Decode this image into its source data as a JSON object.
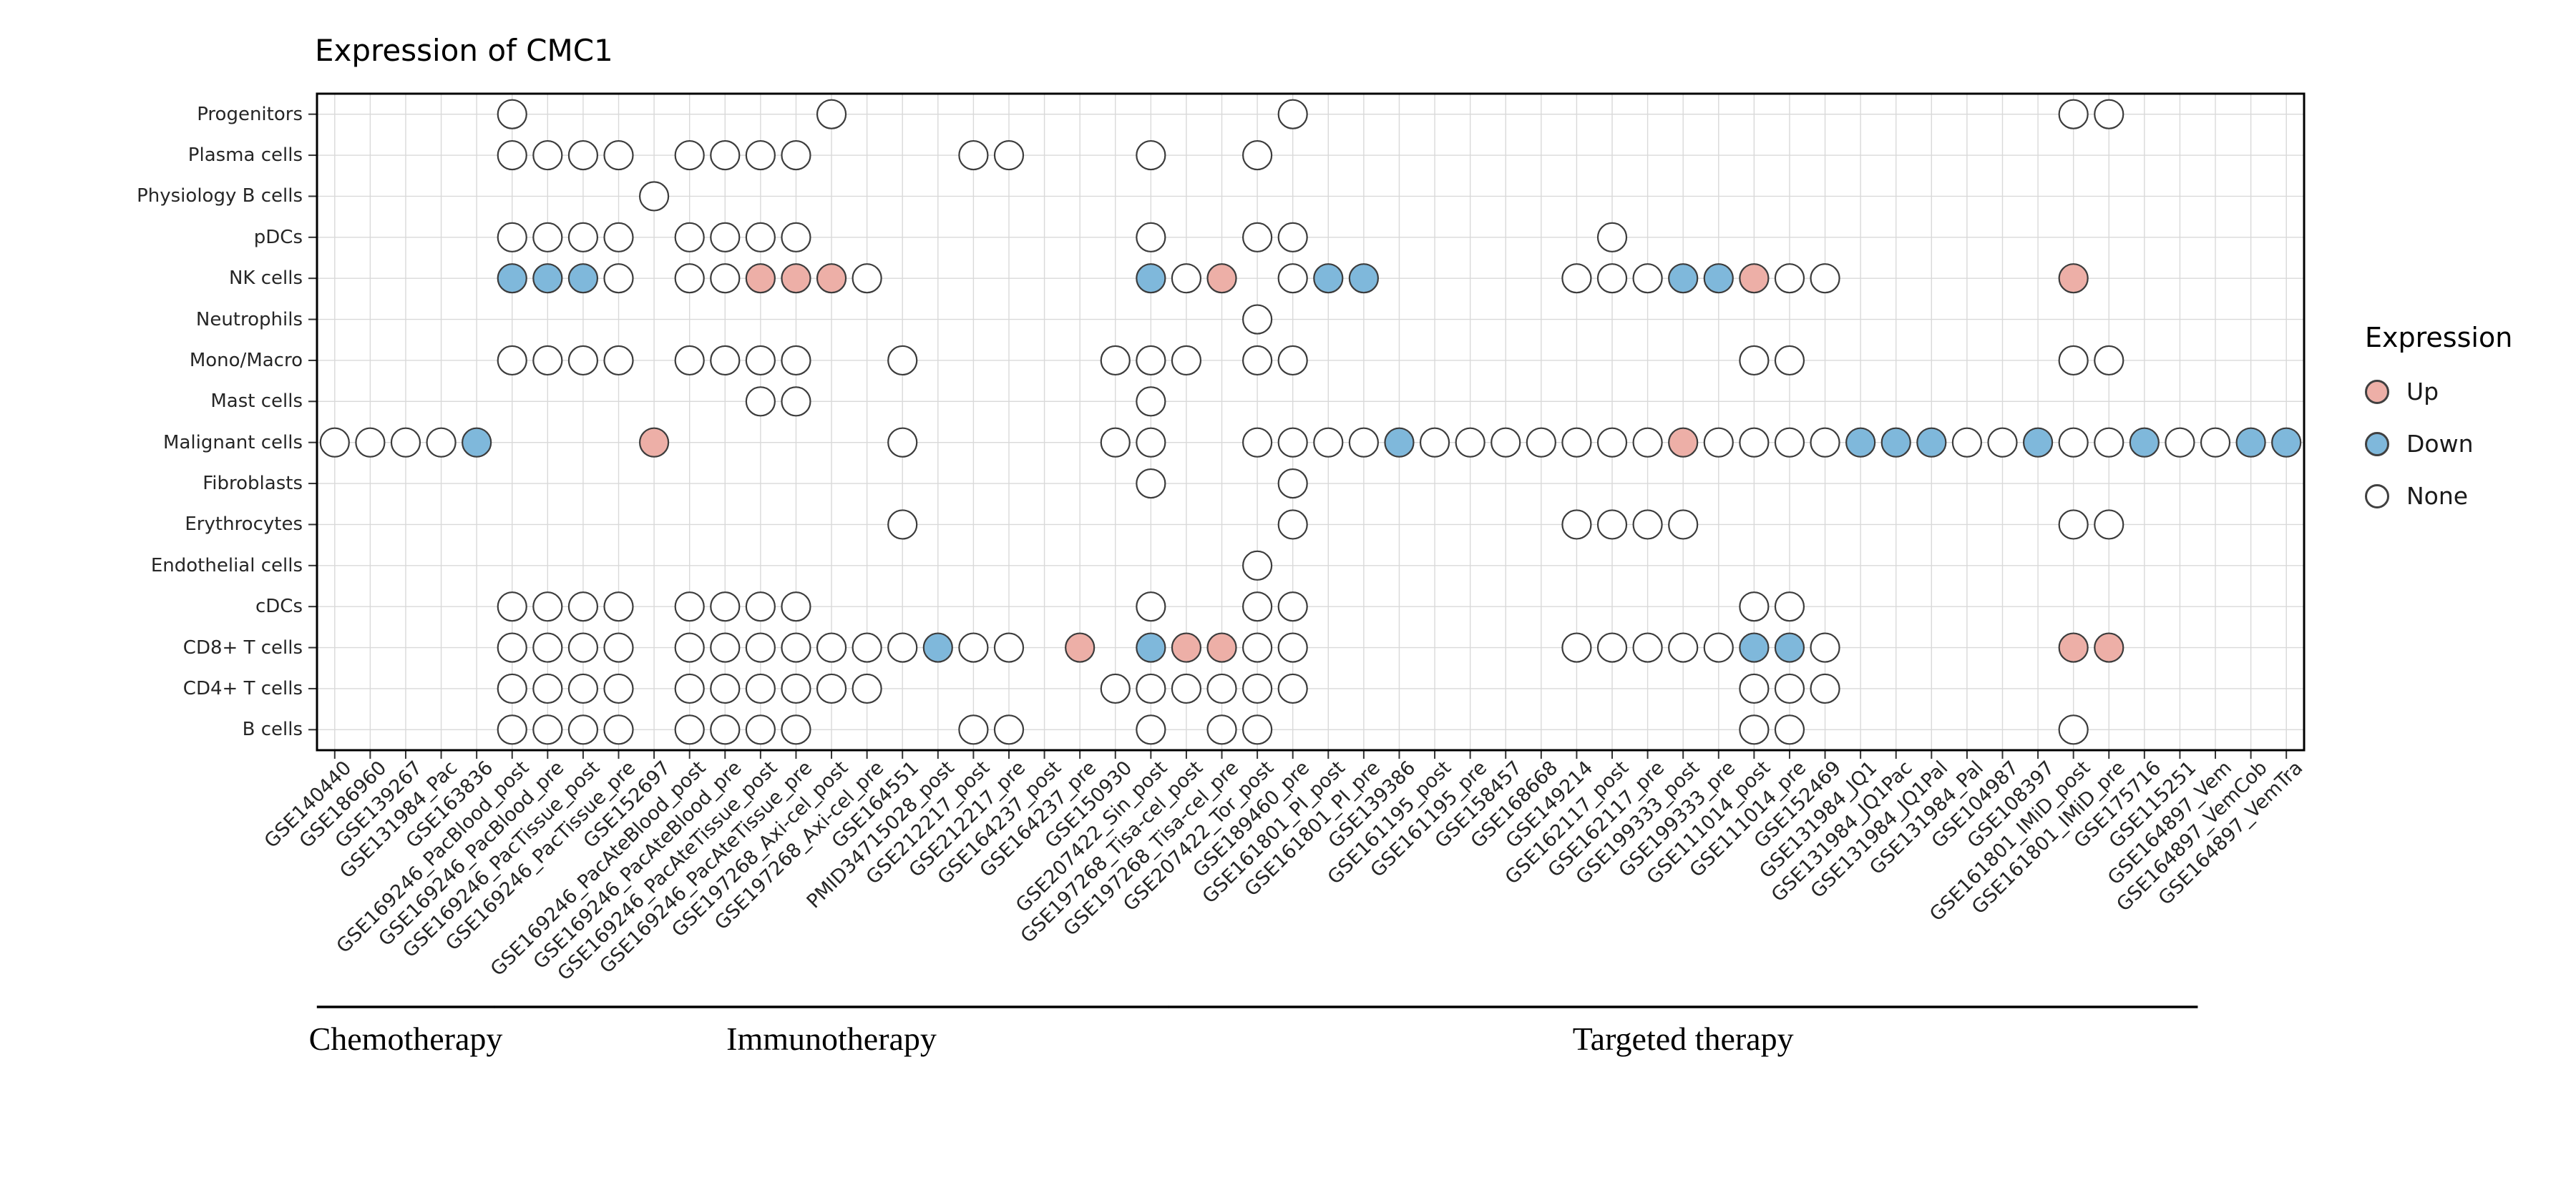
{
  "title": "Expression of CMC1",
  "legend": {
    "title": "Expression",
    "items": [
      {
        "label": "Up",
        "code": "U",
        "color": "#EDAFA7"
      },
      {
        "label": "Down",
        "code": "D",
        "color": "#7FB8DB"
      },
      {
        "label": "None",
        "code": "N",
        "color": "#FFFFFF"
      }
    ]
  },
  "chart_data": {
    "type": "heatmap",
    "variant": "dot-matrix",
    "title": "Expression of CMC1",
    "grid": true,
    "legend_position": "right",
    "rows": [
      "Progenitors",
      "Plasma cells",
      "Physiology B cells",
      "pDCs",
      "NK cells",
      "Neutrophils",
      "Mono/Macro",
      "Mast cells",
      "Malignant cells",
      "Fibroblasts",
      "Erythrocytes",
      "Endothelial cells",
      "cDCs",
      "CD8+ T cells",
      "CD4+ T cells",
      "B cells"
    ],
    "columns": [
      "GSE140440",
      "GSE186960",
      "GSE139267",
      "GSE131984_Pac",
      "GSE163836",
      "GSE169246_PacBlood_post",
      "GSE169246_PacBlood_pre",
      "GSE169246_PacTissue_post",
      "GSE169246_PacTissue_pre",
      "GSE152697",
      "GSE169246_PacAteBlood_post",
      "GSE169246_PacAteBlood_pre",
      "GSE169246_PacAteTissue_post",
      "GSE169246_PacAteTissue_pre",
      "GSE197268_Axi-cel_post",
      "GSE197268_Axi-cel_pre",
      "GSE164551",
      "PMID34715028_post",
      "GSE212217_post",
      "GSE212217_pre",
      "GSE164237_post",
      "GSE164237_pre",
      "GSE150930",
      "GSE207422_Sin_post",
      "GSE197268_Tisa-cel_post",
      "GSE197268_Tisa-cel_pre",
      "GSE207422_Tor_post",
      "GSE189460_pre",
      "GSE161801_PI_post",
      "GSE161801_PI_pre",
      "GSE139386",
      "GSE161195_post",
      "GSE161195_pre",
      "GSE158457",
      "GSE168668",
      "GSE149214",
      "GSE162117_post",
      "GSE162117_pre",
      "GSE199333_post",
      "GSE199333_pre",
      "GSE111014_post",
      "GSE111014_pre",
      "GSE152469",
      "GSE131984_JQ1",
      "GSE131984_JQ1Pac",
      "GSE131984_JQ1Pal",
      "GSE131984_Pal",
      "GSE104987",
      "GSE108397",
      "GSE161801_IMiD_post",
      "GSE161801_IMiD_pre",
      "GSE175716",
      "GSE115251",
      "GSE164897_Vem",
      "GSE164897_VemCob",
      "GSE164897_VemTra"
    ],
    "groups": [
      {
        "label": "Chemotherapy",
        "from": 0,
        "to": 4
      },
      {
        "label": "Immunotherapy",
        "from": 5,
        "to": 23
      },
      {
        "label": "Targeted therapy",
        "from": 24,
        "to": 52
      }
    ],
    "cell_codes": {
      ".": "absent",
      "N": "None",
      "U": "Up",
      "D": "Down"
    },
    "matrix": [
      ".....N........N............N.....................NN.....",
      ".....NNNN.NNNN....NN...N..N.............................",
      ".........N..............................................",
      ".....NNNN.NNNN.........N..NN........N...................",
      ".....DDDN.NNUUUN.......DNU.NDD.....NNNDDUNN......U......",
      "..........................N.............................",
      ".....NNNN.NNNN..N.....NNN.NN............NN.......NN.....",
      "............NN.........N................................",
      "NNNND....U......N.....NN..NNNNDNNNNNNNUNNNNDDDNNDNNDNNDD",
      ".......................N...N............................",
      "................N..........N.......NNNN..........NN.....",
      "..........................N.............................",
      ".....NNNN.NNNN.........N..NN............NN..............",
      ".....NNNN.NNNNNNNDNN.U.DUUNN.......NNNNNDDN......UU.....",
      ".....NNNN.NNNNNN......NNNNNN............NNN.............",
      ".....NNNN.NNNN....NN...N.NN.............NN.......N......"
    ]
  }
}
